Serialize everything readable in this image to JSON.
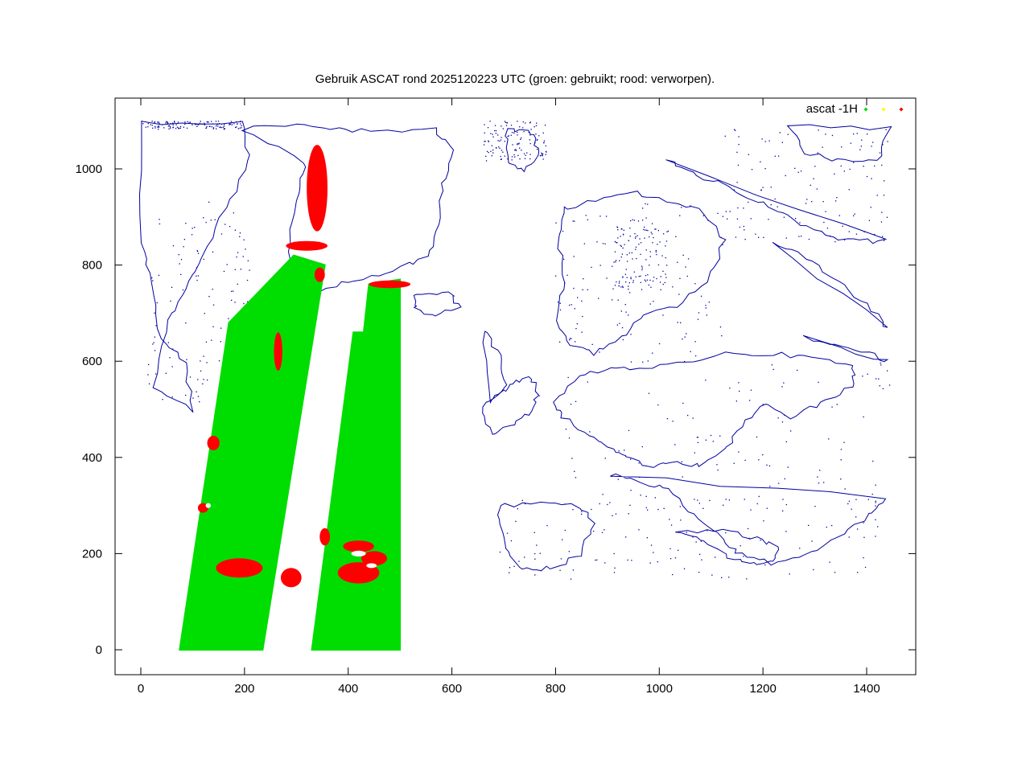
{
  "chart_data": {
    "type": "scatter",
    "title": "Gebruik ASCAT rond 2025120223 UTC (groen: gebruikt; rood: verworpen).",
    "xlabel": "",
    "ylabel": "",
    "xlim": [
      -50,
      1500
    ],
    "ylim": [
      -50,
      1140
    ],
    "x_ticks": [
      0,
      200,
      400,
      600,
      800,
      1000,
      1200,
      1400
    ],
    "y_ticks": [
      0,
      200,
      400,
      600,
      800,
      1000
    ],
    "grid": false,
    "legend_position": "top-right",
    "legend": {
      "label": "ascat -1H"
    },
    "series": [
      {
        "color": "#00dd00",
        "marker": "diamond"
      },
      {
        "color": "#ffff00",
        "marker": "diamond"
      },
      {
        "color": "#ff0000",
        "marker": "diamond"
      }
    ],
    "coastline_color": "#0000a0",
    "swaths": [
      {
        "corners": [
          [
            75,
            0
          ],
          [
            235,
            0
          ],
          [
            355,
            800
          ],
          [
            295,
            820
          ],
          [
            170,
            680
          ]
        ],
        "color": "#00dd00"
      },
      {
        "corners": [
          [
            330,
            0
          ],
          [
            500,
            0
          ],
          [
            500,
            770
          ],
          [
            440,
            760
          ],
          [
            430,
            660
          ],
          [
            410,
            660
          ]
        ],
        "color": "#00dd00"
      }
    ],
    "rejected_regions": [
      {
        "cx": 190,
        "cy": 170,
        "rx": 45,
        "ry": 20
      },
      {
        "cx": 290,
        "cy": 150,
        "rx": 20,
        "ry": 20
      },
      {
        "cx": 420,
        "cy": 160,
        "rx": 40,
        "ry": 22
      },
      {
        "cx": 450,
        "cy": 190,
        "rx": 25,
        "ry": 15
      },
      {
        "cx": 420,
        "cy": 215,
        "rx": 30,
        "ry": 12
      },
      {
        "cx": 140,
        "cy": 430,
        "rx": 12,
        "ry": 15
      },
      {
        "cx": 120,
        "cy": 295,
        "rx": 10,
        "ry": 10
      },
      {
        "cx": 265,
        "cy": 620,
        "rx": 8,
        "ry": 40
      },
      {
        "cx": 340,
        "cy": 960,
        "rx": 20,
        "ry": 90
      },
      {
        "cx": 320,
        "cy": 840,
        "rx": 40,
        "ry": 10
      },
      {
        "cx": 345,
        "cy": 780,
        "rx": 10,
        "ry": 15
      },
      {
        "cx": 480,
        "cy": 760,
        "rx": 40,
        "ry": 8
      },
      {
        "cx": 355,
        "cy": 235,
        "rx": 10,
        "ry": 18
      }
    ]
  }
}
